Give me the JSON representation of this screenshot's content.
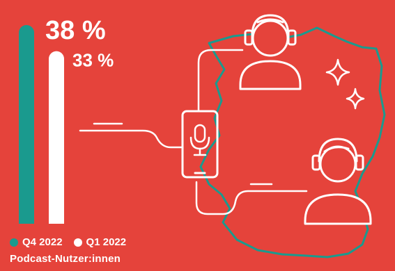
{
  "colors": {
    "background": "#e5433b",
    "q4": "#1a9a8e",
    "q1": "#ffffff",
    "outline": "#ffffff",
    "map": "#1a9a8e"
  },
  "chart_data": {
    "type": "bar",
    "categories": [
      "Q4 2022",
      "Q1 2022"
    ],
    "values": [
      38,
      33
    ],
    "value_labels": [
      "38 %",
      "33 %"
    ],
    "ylim": [
      0,
      40
    ],
    "caption": "Podcast-Nutzer:innen",
    "legend": [
      {
        "label": "Q4 2022",
        "color": "#1a9a8e"
      },
      {
        "label": "Q1 2022",
        "color": "#ffffff"
      }
    ]
  },
  "icons": [
    "microphone-icon",
    "smartphone-icon",
    "person-headphones-icon",
    "sparkle-icon",
    "germany-map-outline"
  ]
}
